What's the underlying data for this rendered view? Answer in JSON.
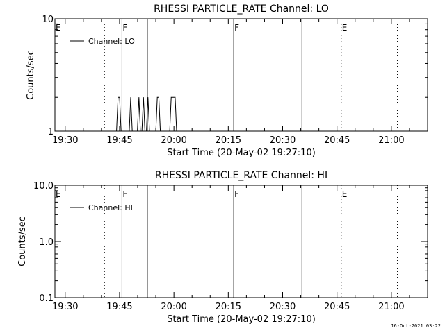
{
  "footer_timestamp": "16-Oct-2021 03:22",
  "chart_data": [
    {
      "type": "line",
      "title": "RHESSI PARTICLE_RATE Channel: LO",
      "xlabel": "Start Time (20-May-02 19:27:10)",
      "ylabel": "Counts/sec",
      "yscale": "log",
      "ylim": [
        1,
        10
      ],
      "xlim": [
        "19:27:10",
        "21:10:00"
      ],
      "x_ticks": [
        "19:30",
        "19:45",
        "20:00",
        "20:15",
        "20:30",
        "20:45",
        "21:00"
      ],
      "y_ticks": [
        "1",
        "10"
      ],
      "legend": {
        "label": "Channel: LO",
        "placement": "top-left"
      },
      "markers": [
        {
          "time": "19:27:10",
          "style": "none",
          "label": "E"
        },
        {
          "time": "19:40:50",
          "style": "dotted",
          "label": ""
        },
        {
          "time": "19:45:40",
          "style": "solid",
          "label": "F"
        },
        {
          "time": "19:52:40",
          "style": "solid",
          "label": ""
        },
        {
          "time": "20:16:30",
          "style": "solid",
          "label": "F"
        },
        {
          "time": "20:35:20",
          "style": "solid",
          "label": ""
        },
        {
          "time": "20:46:10",
          "style": "dotted",
          "label": "E"
        },
        {
          "time": "21:01:40",
          "style": "dotted",
          "label": ""
        }
      ],
      "series": [
        {
          "name": "Channel: LO",
          "points": [
            [
              "19:44:10",
              1
            ],
            [
              "19:44:35",
              2
            ],
            [
              "19:45:00",
              2
            ],
            [
              "19:45:25",
              1
            ],
            [
              "19:47:40",
              1
            ],
            [
              "19:48:05",
              2
            ],
            [
              "19:48:30",
              1
            ],
            [
              "19:49:55",
              1
            ],
            [
              "19:50:20",
              2
            ],
            [
              "19:50:45",
              1
            ],
            [
              "19:51:10",
              1
            ],
            [
              "19:51:35",
              2
            ],
            [
              "19:52:00",
              1
            ],
            [
              "19:52:25",
              1
            ],
            [
              "19:52:50",
              2
            ],
            [
              "19:53:15",
              1
            ],
            [
              "19:55:00",
              1
            ],
            [
              "19:55:25",
              2
            ],
            [
              "19:55:50",
              2
            ],
            [
              "19:56:15",
              1
            ],
            [
              "19:58:50",
              1
            ],
            [
              "19:59:15",
              2
            ],
            [
              "20:00:20",
              2
            ],
            [
              "20:00:45",
              1
            ]
          ]
        }
      ]
    },
    {
      "type": "line",
      "title": "RHESSI PARTICLE_RATE Channel: HI",
      "xlabel": "Start Time (20-May-02 19:27:10)",
      "ylabel": "Counts/sec",
      "yscale": "log",
      "ylim": [
        0.1,
        10
      ],
      "xlim": [
        "19:27:10",
        "21:10:00"
      ],
      "x_ticks": [
        "19:30",
        "19:45",
        "20:00",
        "20:15",
        "20:30",
        "20:45",
        "21:00"
      ],
      "y_ticks": [
        "0.1",
        "1.0",
        "10.0"
      ],
      "legend": {
        "label": "Channel: HI",
        "placement": "top-left"
      },
      "markers": [
        {
          "time": "19:27:10",
          "style": "none",
          "label": "E"
        },
        {
          "time": "19:40:50",
          "style": "dotted",
          "label": ""
        },
        {
          "time": "19:45:40",
          "style": "solid",
          "label": "F"
        },
        {
          "time": "19:52:40",
          "style": "solid",
          "label": ""
        },
        {
          "time": "20:16:30",
          "style": "solid",
          "label": "F"
        },
        {
          "time": "20:35:20",
          "style": "solid",
          "label": ""
        },
        {
          "time": "20:46:10",
          "style": "dotted",
          "label": "E"
        },
        {
          "time": "21:01:40",
          "style": "dotted",
          "label": ""
        }
      ],
      "series": [
        {
          "name": "Channel: HI",
          "points": []
        }
      ]
    }
  ]
}
